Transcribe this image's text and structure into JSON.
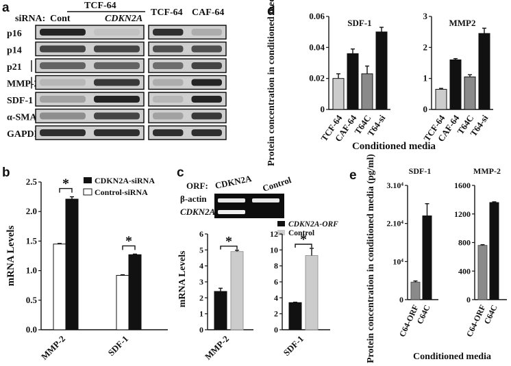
{
  "panels": {
    "a": "a",
    "b": "b",
    "c": "c",
    "d": "d",
    "e": "e"
  },
  "panel_a": {
    "sirna_label": "siRNA:",
    "group1_title": "TCF-64",
    "lane1": "Cont",
    "lane2": "CDKN2A",
    "lane3": "TCF-64",
    "lane4": "CAF-64",
    "rows": [
      "p16",
      "p14",
      "p21",
      "MMP-2",
      "SDF-1",
      "α-SMA",
      "GAPDH"
    ],
    "band_intensity": [
      [
        0.9,
        0.15,
        0.85,
        0.25
      ],
      [
        0.75,
        0.75,
        0.7,
        0.7
      ],
      [
        0.6,
        0.6,
        0.55,
        0.75
      ],
      [
        0.2,
        0.8,
        0.25,
        0.9
      ],
      [
        0.3,
        0.9,
        0.2,
        0.9
      ],
      [
        0.4,
        0.75,
        0.3,
        0.8
      ],
      [
        0.85,
        0.85,
        0.85,
        0.85
      ]
    ]
  },
  "panel_c_gel": {
    "orf_label": "ORF:",
    "lane1": "CDKN2A",
    "lane2": "Control",
    "row1": "β-actin",
    "row2": "CDKN2A"
  },
  "colors": {
    "black": "#111111",
    "white": "#ffffff",
    "lightgray": "#cccccc",
    "gray": "#8a8a8a"
  },
  "chart_data": [
    {
      "id": "b",
      "type": "bar",
      "categories": [
        "MMP-2",
        "SDF-1"
      ],
      "series": [
        {
          "name": "CDKN2A-siRNA",
          "values": [
            2.21,
            1.27
          ],
          "errors": [
            0.04,
            0.01
          ]
        },
        {
          "name": "Control-siRNA",
          "values": [
            1.45,
            0.92
          ],
          "errors": [
            0.01,
            0.01
          ]
        }
      ],
      "ylabel": "mRNA Levels",
      "ylim": [
        0,
        2.5
      ],
      "yticks": [
        "0.0",
        "0.5",
        "1.0",
        "1.5",
        "2.0",
        "2.5"
      ],
      "significance": [
        "*",
        "*"
      ],
      "legend": "top-right"
    },
    {
      "id": "c",
      "type": "bar",
      "ylabel": "mRNA Levels",
      "series_names": [
        "CDKN2A-ORF",
        "Control"
      ],
      "subplots": [
        {
          "category": "MMP-2",
          "values": [
            2.4,
            4.9
          ],
          "errors": [
            0.2,
            0.08
          ],
          "ylim": [
            0,
            6
          ],
          "yticks": [
            "0",
            "1",
            "2",
            "3",
            "4",
            "5",
            "6"
          ],
          "significance": "*"
        },
        {
          "category": "SDF-1",
          "values": [
            3.4,
            9.3
          ],
          "errors": [
            0.05,
            0.9
          ],
          "ylim": [
            0,
            12
          ],
          "yticks": [
            "0",
            "2",
            "4",
            "6",
            "8",
            "10",
            "12"
          ],
          "significance": "*"
        }
      ]
    },
    {
      "id": "d",
      "type": "bar",
      "ylabel": "Protein concentration in conditioned media (ng/ml)",
      "xlabel": "Conditioned media",
      "categories": [
        "TCF-64",
        "CAF-64",
        "T64C",
        "T64-si"
      ],
      "subplots": [
        {
          "title": "SDF-1",
          "values": [
            0.02,
            0.036,
            0.023,
            0.05
          ],
          "errors": [
            0.003,
            0.003,
            0.005,
            0.003
          ],
          "ylim": [
            0,
            0.06
          ],
          "yticks": [
            "0",
            "0.02",
            "0.04",
            "0.06"
          ]
        },
        {
          "title": "MMP2",
          "values": [
            0.65,
            1.6,
            1.05,
            2.45
          ],
          "errors": [
            0.03,
            0.04,
            0.07,
            0.17
          ],
          "ylim": [
            0,
            3
          ],
          "yticks": [
            "0",
            "1",
            "2",
            "3"
          ]
        }
      ]
    },
    {
      "id": "e",
      "type": "bar",
      "ylabel": "Protein concentration in conditioned media (pg/ml)",
      "xlabel": "Conditioned media",
      "categories": [
        "C64-ORF",
        "C64C"
      ],
      "subplots": [
        {
          "title": "SDF-1",
          "values": [
            4600,
            22000
          ],
          "errors": [
            300,
            3200
          ],
          "ylim": [
            0,
            30000
          ],
          "yticks": [
            "0",
            "10⁴",
            "2.10⁴",
            "3.10⁴"
          ]
        },
        {
          "title": "MMP-2",
          "values": [
            760,
            1360
          ],
          "errors": [
            10,
            10
          ],
          "ylim": [
            0,
            1600
          ],
          "yticks": [
            "0",
            "400",
            "800",
            "1200",
            "1600"
          ]
        }
      ]
    }
  ]
}
